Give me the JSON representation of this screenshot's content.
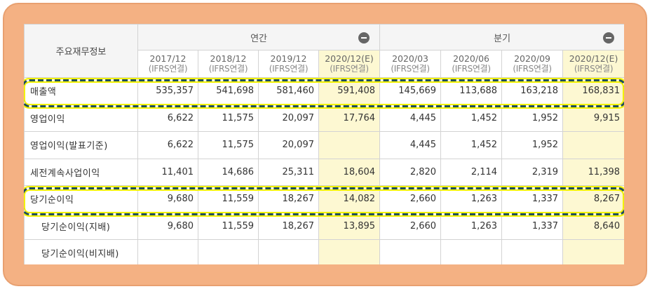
{
  "table": {
    "corner_label": "주요재무정보",
    "groups": {
      "annual": "연간",
      "quarter": "분기"
    },
    "periods": [
      {
        "date": "2017/12",
        "basis": "(IFRS연결)"
      },
      {
        "date": "2018/12",
        "basis": "(IFRS연결)"
      },
      {
        "date": "2019/12",
        "basis": "(IFRS연결)"
      },
      {
        "date": "2020/12(E)",
        "basis": "(IFRS연결)"
      },
      {
        "date": "2020/03",
        "basis": "(IFRS연결)"
      },
      {
        "date": "2020/06",
        "basis": "(IFRS연결)"
      },
      {
        "date": "2020/09",
        "basis": "(IFRS연결)"
      },
      {
        "date": "2020/12(E)",
        "basis": "(IFRS연결)"
      }
    ],
    "rows": [
      {
        "label": "매출액",
        "values": [
          "535,357",
          "541,698",
          "581,460",
          "591,408",
          "145,669",
          "113,688",
          "163,218",
          "168,831"
        ]
      },
      {
        "label": "영업이익",
        "values": [
          "6,622",
          "11,575",
          "20,097",
          "17,764",
          "4,445",
          "1,452",
          "1,952",
          "9,915"
        ]
      },
      {
        "label": "영업이익(발표기준)",
        "values": [
          "6,622",
          "11,575",
          "20,097",
          "",
          "4,445",
          "1,452",
          "1,952",
          ""
        ]
      },
      {
        "label": "세전계속사업이익",
        "values": [
          "11,401",
          "14,686",
          "25,311",
          "18,604",
          "2,820",
          "2,114",
          "2,319",
          "11,398"
        ]
      },
      {
        "label": "당기순이익",
        "values": [
          "9,680",
          "11,559",
          "18,267",
          "14,082",
          "2,660",
          "1,263",
          "1,337",
          "8,267"
        ]
      },
      {
        "label": "당기순이익(지배)",
        "values": [
          "9,680",
          "11,559",
          "18,267",
          "13,895",
          "2,660",
          "1,263",
          "1,337",
          "8,640"
        ]
      },
      {
        "label": "당기순이익(비지배)",
        "values": [
          "",
          "",
          "",
          "",
          "",
          "",
          "",
          ""
        ]
      }
    ]
  },
  "colors": {
    "frame": "#f4b183",
    "estimate_column": "#fdf8d2",
    "highlight_dash": "#1f4e5a",
    "highlight_glow": "#f2f200"
  },
  "highlighted_rows": [
    "매출액",
    "당기순이익"
  ]
}
